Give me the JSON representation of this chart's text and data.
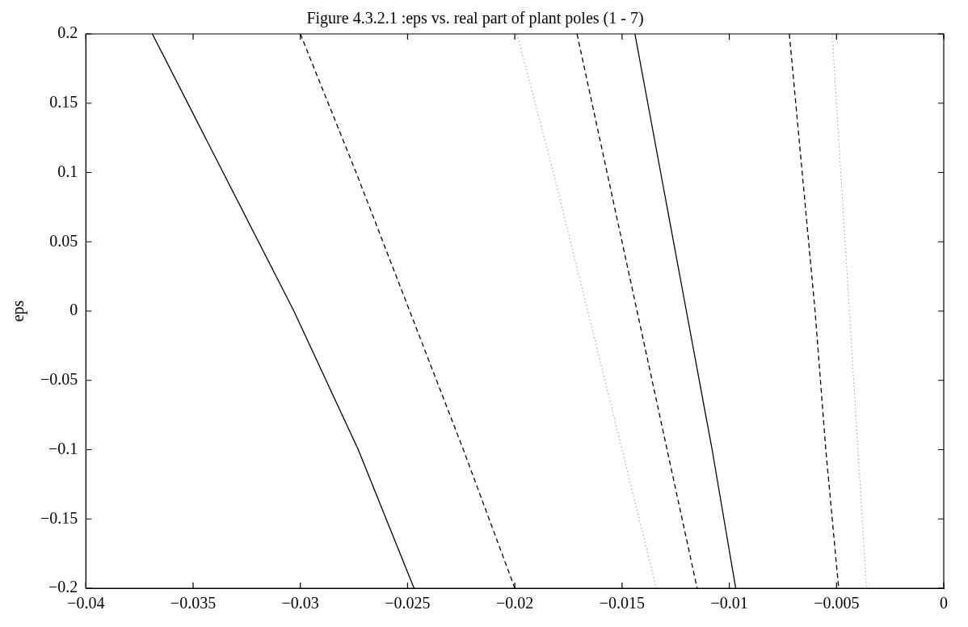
{
  "chart_data": {
    "type": "line",
    "title": "Figure 4.3.2.1 :eps vs. real part of plant poles (1 - 7)",
    "ylabel": "eps",
    "xlim": [
      -0.04,
      0
    ],
    "xticks": [
      -0.04,
      -0.035,
      -0.03,
      -0.025,
      -0.02,
      -0.015,
      -0.01,
      -0.005,
      0
    ],
    "ylim": [
      -0.2,
      0.2
    ],
    "yticks": [
      -0.2,
      -0.15,
      -0.1,
      -0.05,
      0,
      0.05,
      0.1,
      0.15,
      0.2
    ],
    "grid": false,
    "legend": false,
    "marker": "none",
    "series": [
      {
        "color": "#000000",
        "line_style": "solid",
        "x": [
          -0.0369,
          -0.0336,
          -0.0303,
          -0.0273,
          -0.0247
        ],
        "values": [
          0.2,
          0.1,
          0,
          -0.1,
          -0.2
        ]
      },
      {
        "color": "#000000",
        "line_style": "dashed",
        "x": [
          -0.03,
          -0.0274,
          -0.0249,
          -0.0224,
          -0.02
        ],
        "values": [
          0.2,
          0.1,
          0,
          -0.1,
          -0.2
        ]
      },
      {
        "color": "#aaaaaa",
        "line_style": "dotted",
        "x": [
          -0.0199,
          -0.0182,
          -0.0166,
          -0.015,
          -0.0134
        ],
        "values": [
          0.2,
          0.1,
          0,
          -0.1,
          -0.2
        ]
      },
      {
        "color": "#000000",
        "line_style": "dashed",
        "x": [
          -0.0171,
          -0.0157,
          -0.0143,
          -0.0129,
          -0.0115
        ],
        "values": [
          0.2,
          0.1,
          0,
          -0.1,
          -0.2
        ]
      },
      {
        "color": "#000000",
        "line_style": "solid",
        "x": [
          -0.0144,
          -0.0132,
          -0.012,
          -0.0108,
          -0.0097
        ],
        "values": [
          0.2,
          0.1,
          0,
          -0.1,
          -0.2
        ]
      },
      {
        "color": "#000000",
        "line_style": "dashed",
        "x": [
          -0.0072,
          -0.0066,
          -0.006,
          -0.0055,
          -0.0049
        ],
        "values": [
          0.2,
          0.1,
          0,
          -0.1,
          -0.2
        ]
      },
      {
        "color": "#aaaaaa",
        "line_style": "dotted",
        "x": [
          -0.0052,
          -0.0048,
          -0.0044,
          -0.004,
          -0.0036
        ],
        "values": [
          0.2,
          0.1,
          0,
          -0.1,
          -0.2
        ]
      }
    ]
  }
}
